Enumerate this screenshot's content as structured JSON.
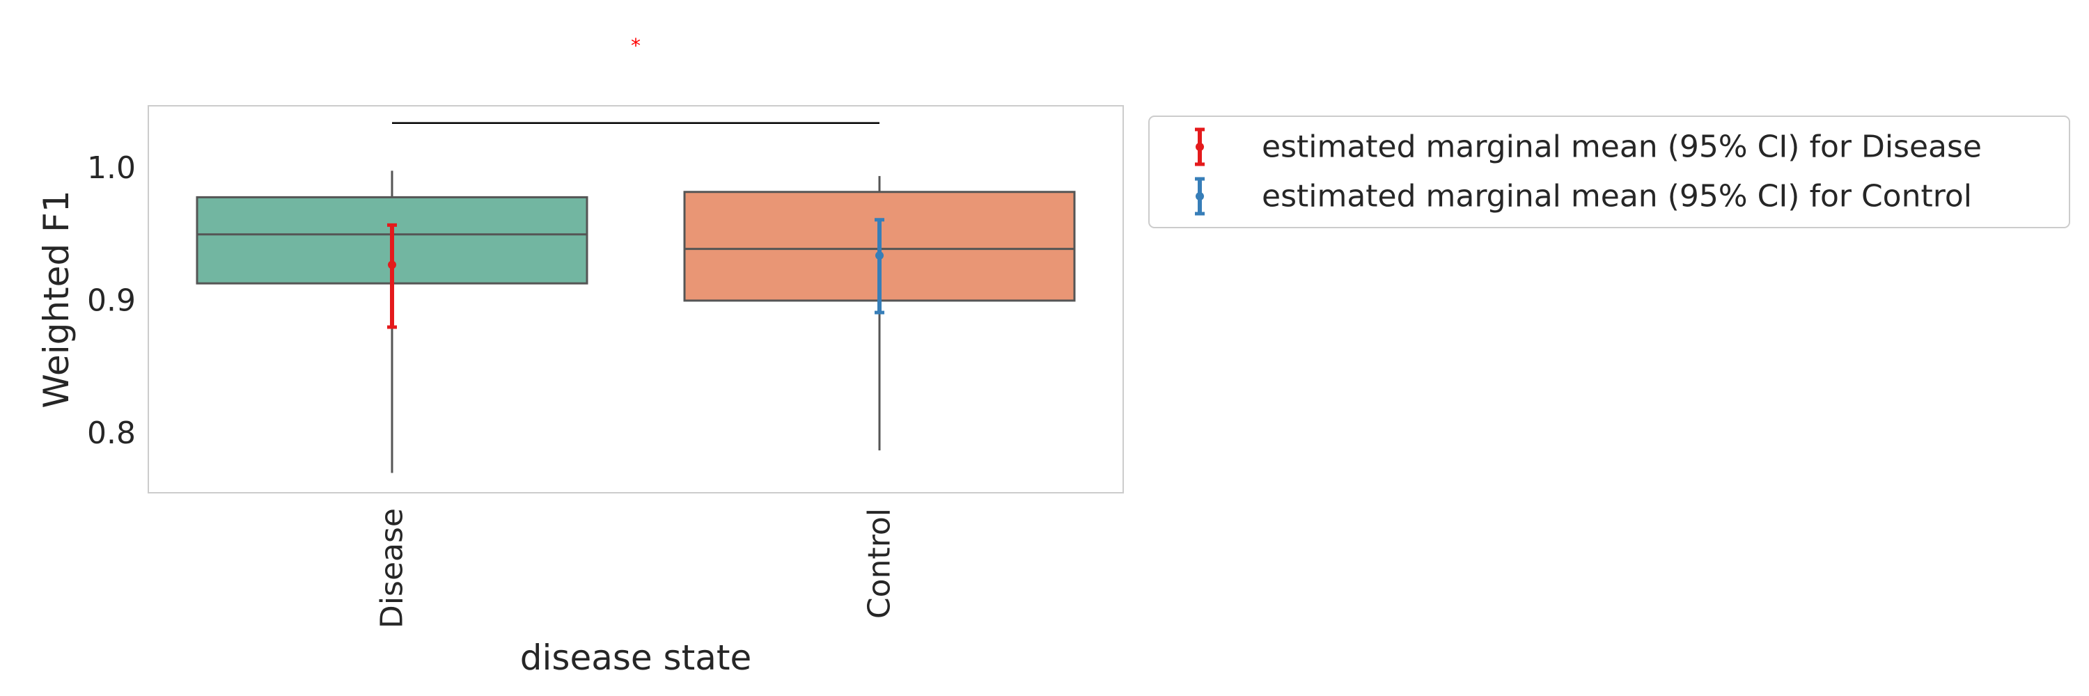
{
  "chart_data": {
    "type": "box",
    "xlabel": "disease state",
    "ylabel": "Weighted F1",
    "ylim": [
      0.755,
      1.047
    ],
    "yticks": [
      0.8,
      0.9,
      1.0
    ],
    "ytick_labels": [
      "0.8",
      "0.9",
      "1.0"
    ],
    "categories": [
      "Disease",
      "Control"
    ],
    "boxes": [
      {
        "category": "Disease",
        "whisker_low": 0.77,
        "q1": 0.913,
        "median": 0.95,
        "q3": 0.978,
        "whisker_high": 0.998,
        "color": "#72b6a1"
      },
      {
        "category": "Control",
        "whisker_low": 0.787,
        "q1": 0.9,
        "median": 0.939,
        "q3": 0.982,
        "whisker_high": 0.994,
        "color": "#e99675"
      }
    ],
    "marginal_means": [
      {
        "category": "Disease",
        "mean": 0.927,
        "ci_low": 0.88,
        "ci_high": 0.957,
        "color": "#e41a1c"
      },
      {
        "category": "Control",
        "mean": 0.934,
        "ci_low": 0.891,
        "ci_high": 0.961,
        "color": "#377eb8"
      }
    ],
    "significance": {
      "label": "*",
      "color": "#ff0000",
      "from": "Disease",
      "to": "Control",
      "y": 1.034
    },
    "legend": {
      "placement": "outside-right-top",
      "entries": [
        {
          "label": "estimated marginal mean (95% CI) for Disease",
          "color": "#e41a1c"
        },
        {
          "label": "estimated marginal mean (95% CI) for Control",
          "color": "#377eb8"
        }
      ]
    },
    "grid": false
  }
}
